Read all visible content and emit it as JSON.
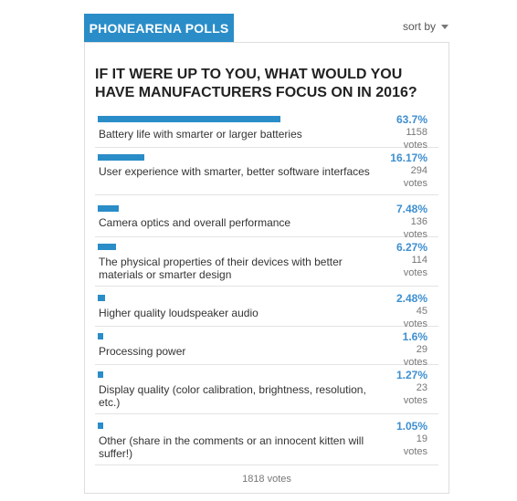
{
  "header": {
    "badge": "PHONEARENA POLLS",
    "sort_label": "sort by"
  },
  "poll": {
    "question": "IF IT WERE UP TO YOU, WHAT WOULD YOU HAVE MANUFACTURERS FOCUS ON IN 2016?",
    "options": [
      {
        "label": "Battery life with smarter or larger batteries",
        "percent": "63.7%",
        "votes": "1158 votes",
        "fraction": 0.637
      },
      {
        "label": "User experience with smarter, better software interfaces",
        "percent": "16.17%",
        "votes": "294 votes",
        "fraction": 0.1617
      },
      {
        "label": "Camera optics and overall performance",
        "percent": "7.48%",
        "votes": "136 votes",
        "fraction": 0.0748
      },
      {
        "label": "The physical properties of their devices with better materials or smarter design",
        "percent": "6.27%",
        "votes": "114 votes",
        "fraction": 0.0627
      },
      {
        "label": "Higher quality loudspeaker audio",
        "percent": "2.48%",
        "votes": "45 votes",
        "fraction": 0.0248
      },
      {
        "label": "Processing power",
        "percent": "1.6%",
        "votes": "29 votes",
        "fraction": 0.016
      },
      {
        "label": "Display quality (color calibration, brightness, resolution, etc.)",
        "percent": "1.27%",
        "votes": "23 votes",
        "fraction": 0.0127
      },
      {
        "label": "Other (share in the comments or an innocent kitten will suffer!)",
        "percent": "1.05%",
        "votes": "19 votes",
        "fraction": 0.0105
      }
    ],
    "total": "1818 votes",
    "accent_color": "#2a8dc8"
  }
}
